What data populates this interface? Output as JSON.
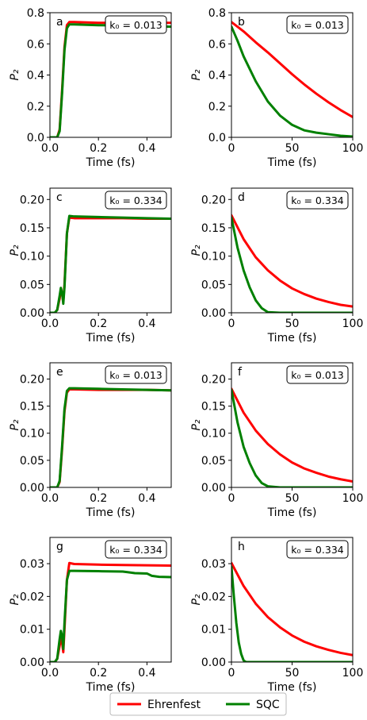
{
  "chart_data": [
    {
      "type": "line",
      "panel_label": "a",
      "annotation": "k₀ = 0.013",
      "ylim": [
        0,
        0.8
      ],
      "xlim": [
        0,
        0.5
      ],
      "xticks": [
        0,
        0.2,
        0.4
      ],
      "xtick_labels": [
        "0.0",
        "0.2",
        "0.4"
      ],
      "yticks": [
        0,
        0.2,
        0.4,
        0.6,
        0.8
      ],
      "ytick_labels": [
        "0.0",
        "0.2",
        "0.4",
        "0.6",
        "0.8"
      ],
      "xlabel": "Time (fs)",
      "ylabel": "P₂",
      "series": [
        {
          "name": "Ehrenfest",
          "color": "#ff0000",
          "x": [
            0,
            0.03,
            0.04,
            0.05,
            0.06,
            0.07,
            0.08,
            0.1,
            0.2,
            0.3,
            0.4,
            0.5
          ],
          "y": [
            0,
            0,
            0.05,
            0.3,
            0.58,
            0.72,
            0.74,
            0.74,
            0.735,
            0.735,
            0.735,
            0.735
          ]
        },
        {
          "name": "SQC",
          "color": "#008000",
          "x": [
            0,
            0.03,
            0.04,
            0.05,
            0.06,
            0.07,
            0.08,
            0.1,
            0.2,
            0.3,
            0.4,
            0.5
          ],
          "y": [
            0,
            0,
            0.04,
            0.28,
            0.56,
            0.7,
            0.725,
            0.725,
            0.72,
            0.718,
            0.714,
            0.71
          ]
        }
      ]
    },
    {
      "type": "line",
      "panel_label": "b",
      "annotation": "k₀ = 0.013",
      "ylim": [
        0,
        0.8
      ],
      "xlim": [
        0,
        100
      ],
      "xticks": [
        0,
        50,
        100
      ],
      "xtick_labels": [
        "0",
        "50",
        "100"
      ],
      "yticks": [
        0,
        0.2,
        0.4,
        0.6,
        0.8
      ],
      "ytick_labels": [
        "0.0",
        "0.2",
        "0.4",
        "0.6",
        "0.8"
      ],
      "xlabel": "Time (fs)",
      "ylabel": "P₂",
      "series": [
        {
          "name": "Ehrenfest",
          "color": "#ff0000",
          "x": [
            0,
            10,
            20,
            30,
            40,
            50,
            60,
            70,
            80,
            90,
            100
          ],
          "y": [
            0.74,
            0.68,
            0.61,
            0.545,
            0.475,
            0.405,
            0.34,
            0.28,
            0.225,
            0.175,
            0.13
          ]
        },
        {
          "name": "SQC",
          "color": "#008000",
          "x": [
            0,
            5,
            10,
            20,
            30,
            40,
            50,
            60,
            70,
            80,
            90,
            100
          ],
          "y": [
            0.71,
            0.62,
            0.52,
            0.36,
            0.23,
            0.14,
            0.08,
            0.045,
            0.03,
            0.02,
            0.01,
            0.005
          ]
        }
      ]
    },
    {
      "type": "line",
      "panel_label": "c",
      "annotation": "k₀ = 0.334",
      "ylim": [
        0,
        0.22
      ],
      "xlim": [
        0,
        0.5
      ],
      "xticks": [
        0,
        0.2,
        0.4
      ],
      "xtick_labels": [
        "0.0",
        "0.2",
        "0.4"
      ],
      "yticks": [
        0,
        0.05,
        0.1,
        0.15,
        0.2
      ],
      "ytick_labels": [
        "0.00",
        "0.05",
        "0.10",
        "0.15",
        "0.20"
      ],
      "xlabel": "Time (fs)",
      "ylabel": "P₂",
      "series": [
        {
          "name": "Ehrenfest",
          "color": "#ff0000",
          "x": [
            0,
            0.02,
            0.03,
            0.04,
            0.045,
            0.05,
            0.055,
            0.06,
            0.07,
            0.08,
            0.1,
            0.2,
            0.3,
            0.4,
            0.5
          ],
          "y": [
            0,
            0,
            0.005,
            0.025,
            0.04,
            0.035,
            0.02,
            0.05,
            0.14,
            0.168,
            0.167,
            0.167,
            0.167,
            0.166,
            0.166
          ]
        },
        {
          "name": "SQC",
          "color": "#008000",
          "x": [
            0,
            0.02,
            0.03,
            0.04,
            0.045,
            0.05,
            0.055,
            0.06,
            0.07,
            0.08,
            0.1,
            0.2,
            0.3,
            0.4,
            0.5
          ],
          "y": [
            0,
            0,
            0.005,
            0.03,
            0.044,
            0.035,
            0.016,
            0.045,
            0.14,
            0.171,
            0.17,
            0.169,
            0.168,
            0.167,
            0.166
          ]
        }
      ]
    },
    {
      "type": "line",
      "panel_label": "d",
      "annotation": "k₀ = 0.334",
      "ylim": [
        0,
        0.22
      ],
      "xlim": [
        0,
        100
      ],
      "xticks": [
        0,
        50,
        100
      ],
      "xtick_labels": [
        "0",
        "50",
        "100"
      ],
      "yticks": [
        0,
        0.05,
        0.1,
        0.15,
        0.2
      ],
      "ytick_labels": [
        "0.00",
        "0.05",
        "0.10",
        "0.15",
        "0.20"
      ],
      "xlabel": "Time (fs)",
      "ylabel": "P₂",
      "series": [
        {
          "name": "Ehrenfest",
          "color": "#ff0000",
          "x": [
            0,
            10,
            20,
            30,
            40,
            50,
            60,
            70,
            80,
            90,
            100
          ],
          "y": [
            0.172,
            0.13,
            0.098,
            0.075,
            0.057,
            0.043,
            0.033,
            0.025,
            0.019,
            0.014,
            0.011
          ]
        },
        {
          "name": "SQC",
          "color": "#008000",
          "x": [
            0,
            5,
            10,
            15,
            20,
            25,
            30,
            40,
            100
          ],
          "y": [
            0.168,
            0.115,
            0.075,
            0.045,
            0.022,
            0.008,
            0.001,
            0,
            0
          ]
        }
      ]
    },
    {
      "type": "line",
      "panel_label": "e",
      "annotation": "k₀ = 0.013",
      "ylim": [
        0,
        0.23
      ],
      "xlim": [
        0,
        0.5
      ],
      "xticks": [
        0,
        0.2,
        0.4
      ],
      "xtick_labels": [
        "0.0",
        "0.2",
        "0.4"
      ],
      "yticks": [
        0,
        0.05,
        0.1,
        0.15,
        0.2
      ],
      "ytick_labels": [
        "0.00",
        "0.05",
        "0.10",
        "0.15",
        "0.20"
      ],
      "xlabel": "Time (fs)",
      "ylabel": "P₂",
      "series": [
        {
          "name": "Ehrenfest",
          "color": "#ff0000",
          "x": [
            0,
            0.03,
            0.04,
            0.05,
            0.06,
            0.07,
            0.08,
            0.1,
            0.2,
            0.3,
            0.4,
            0.5
          ],
          "y": [
            0,
            0,
            0.01,
            0.07,
            0.14,
            0.175,
            0.181,
            0.181,
            0.18,
            0.18,
            0.18,
            0.179
          ]
        },
        {
          "name": "SQC",
          "color": "#008000",
          "x": [
            0,
            0.03,
            0.04,
            0.05,
            0.06,
            0.07,
            0.08,
            0.1,
            0.2,
            0.3,
            0.4,
            0.5
          ],
          "y": [
            0,
            0,
            0.012,
            0.075,
            0.145,
            0.178,
            0.183,
            0.183,
            0.182,
            0.181,
            0.18,
            0.179
          ]
        }
      ]
    },
    {
      "type": "line",
      "panel_label": "f",
      "annotation": "k₀ = 0.013",
      "ylim": [
        0,
        0.23
      ],
      "xlim": [
        0,
        100
      ],
      "xticks": [
        0,
        50,
        100
      ],
      "xtick_labels": [
        "0",
        "50",
        "100"
      ],
      "yticks": [
        0,
        0.05,
        0.1,
        0.15,
        0.2
      ],
      "ytick_labels": [
        "0.00",
        "0.05",
        "0.10",
        "0.15",
        "0.20"
      ],
      "xlabel": "Time (fs)",
      "ylabel": "P₂",
      "series": [
        {
          "name": "Ehrenfest",
          "color": "#ff0000",
          "x": [
            0,
            10,
            20,
            30,
            40,
            50,
            60,
            70,
            80,
            90,
            100
          ],
          "y": [
            0.182,
            0.138,
            0.105,
            0.08,
            0.061,
            0.046,
            0.035,
            0.027,
            0.02,
            0.015,
            0.011
          ]
        },
        {
          "name": "SQC",
          "color": "#008000",
          "x": [
            0,
            5,
            10,
            15,
            20,
            25,
            30,
            40,
            100
          ],
          "y": [
            0.18,
            0.12,
            0.075,
            0.045,
            0.022,
            0.008,
            0.002,
            0,
            0
          ]
        }
      ]
    },
    {
      "type": "line",
      "panel_label": "g",
      "annotation": "k₀ = 0.334",
      "ylim": [
        0,
        0.038
      ],
      "xlim": [
        0,
        0.5
      ],
      "xticks": [
        0,
        0.2,
        0.4
      ],
      "xtick_labels": [
        "0.0",
        "0.2",
        "0.4"
      ],
      "yticks": [
        0,
        0.01,
        0.02,
        0.03
      ],
      "ytick_labels": [
        "0.00",
        "0.01",
        "0.02",
        "0.03"
      ],
      "xlabel": "Time (fs)",
      "ylabel": "P₂",
      "series": [
        {
          "name": "Ehrenfest",
          "color": "#ff0000",
          "x": [
            0,
            0.02,
            0.03,
            0.04,
            0.045,
            0.05,
            0.055,
            0.06,
            0.07,
            0.08,
            0.1,
            0.2,
            0.3,
            0.4,
            0.5
          ],
          "y": [
            0,
            0,
            0.001,
            0.005,
            0.007,
            0.006,
            0.003,
            0.01,
            0.025,
            0.0302,
            0.0299,
            0.0297,
            0.0296,
            0.0295,
            0.0294
          ]
        },
        {
          "name": "SQC",
          "color": "#008000",
          "x": [
            0,
            0.02,
            0.03,
            0.04,
            0.045,
            0.05,
            0.055,
            0.06,
            0.07,
            0.08,
            0.1,
            0.2,
            0.3,
            0.32,
            0.35,
            0.4,
            0.42,
            0.45,
            0.5
          ],
          "y": [
            0,
            0,
            0.001,
            0.007,
            0.0095,
            0.008,
            0.004,
            0.012,
            0.025,
            0.0278,
            0.0278,
            0.0277,
            0.0276,
            0.0274,
            0.0271,
            0.027,
            0.0263,
            0.026,
            0.0259
          ]
        }
      ]
    },
    {
      "type": "line",
      "panel_label": "h",
      "annotation": "k₀ = 0.334",
      "ylim": [
        0,
        0.038
      ],
      "xlim": [
        0,
        100
      ],
      "xticks": [
        0,
        50,
        100
      ],
      "xtick_labels": [
        "0",
        "50",
        "100"
      ],
      "yticks": [
        0,
        0.01,
        0.02,
        0.03
      ],
      "ytick_labels": [
        "0.00",
        "0.01",
        "0.02",
        "0.03"
      ],
      "xlabel": "Time (fs)",
      "ylabel": "P₂",
      "series": [
        {
          "name": "Ehrenfest",
          "color": "#ff0000",
          "x": [
            0,
            10,
            20,
            30,
            40,
            50,
            60,
            70,
            80,
            90,
            100
          ],
          "y": [
            0.0302,
            0.0232,
            0.0178,
            0.0137,
            0.0106,
            0.0081,
            0.0062,
            0.0048,
            0.0037,
            0.0028,
            0.0021
          ]
        },
        {
          "name": "SQC",
          "color": "#008000",
          "x": [
            0,
            2,
            4,
            6,
            8,
            10,
            12,
            100
          ],
          "y": [
            0.029,
            0.02,
            0.012,
            0.006,
            0.0025,
            0.0005,
            0,
            0
          ]
        }
      ]
    }
  ],
  "legend": {
    "placement": "bottom-center",
    "entries": [
      {
        "label": "Ehrenfest",
        "color": "#ff0000"
      },
      {
        "label": "SQC",
        "color": "#008000"
      }
    ]
  }
}
